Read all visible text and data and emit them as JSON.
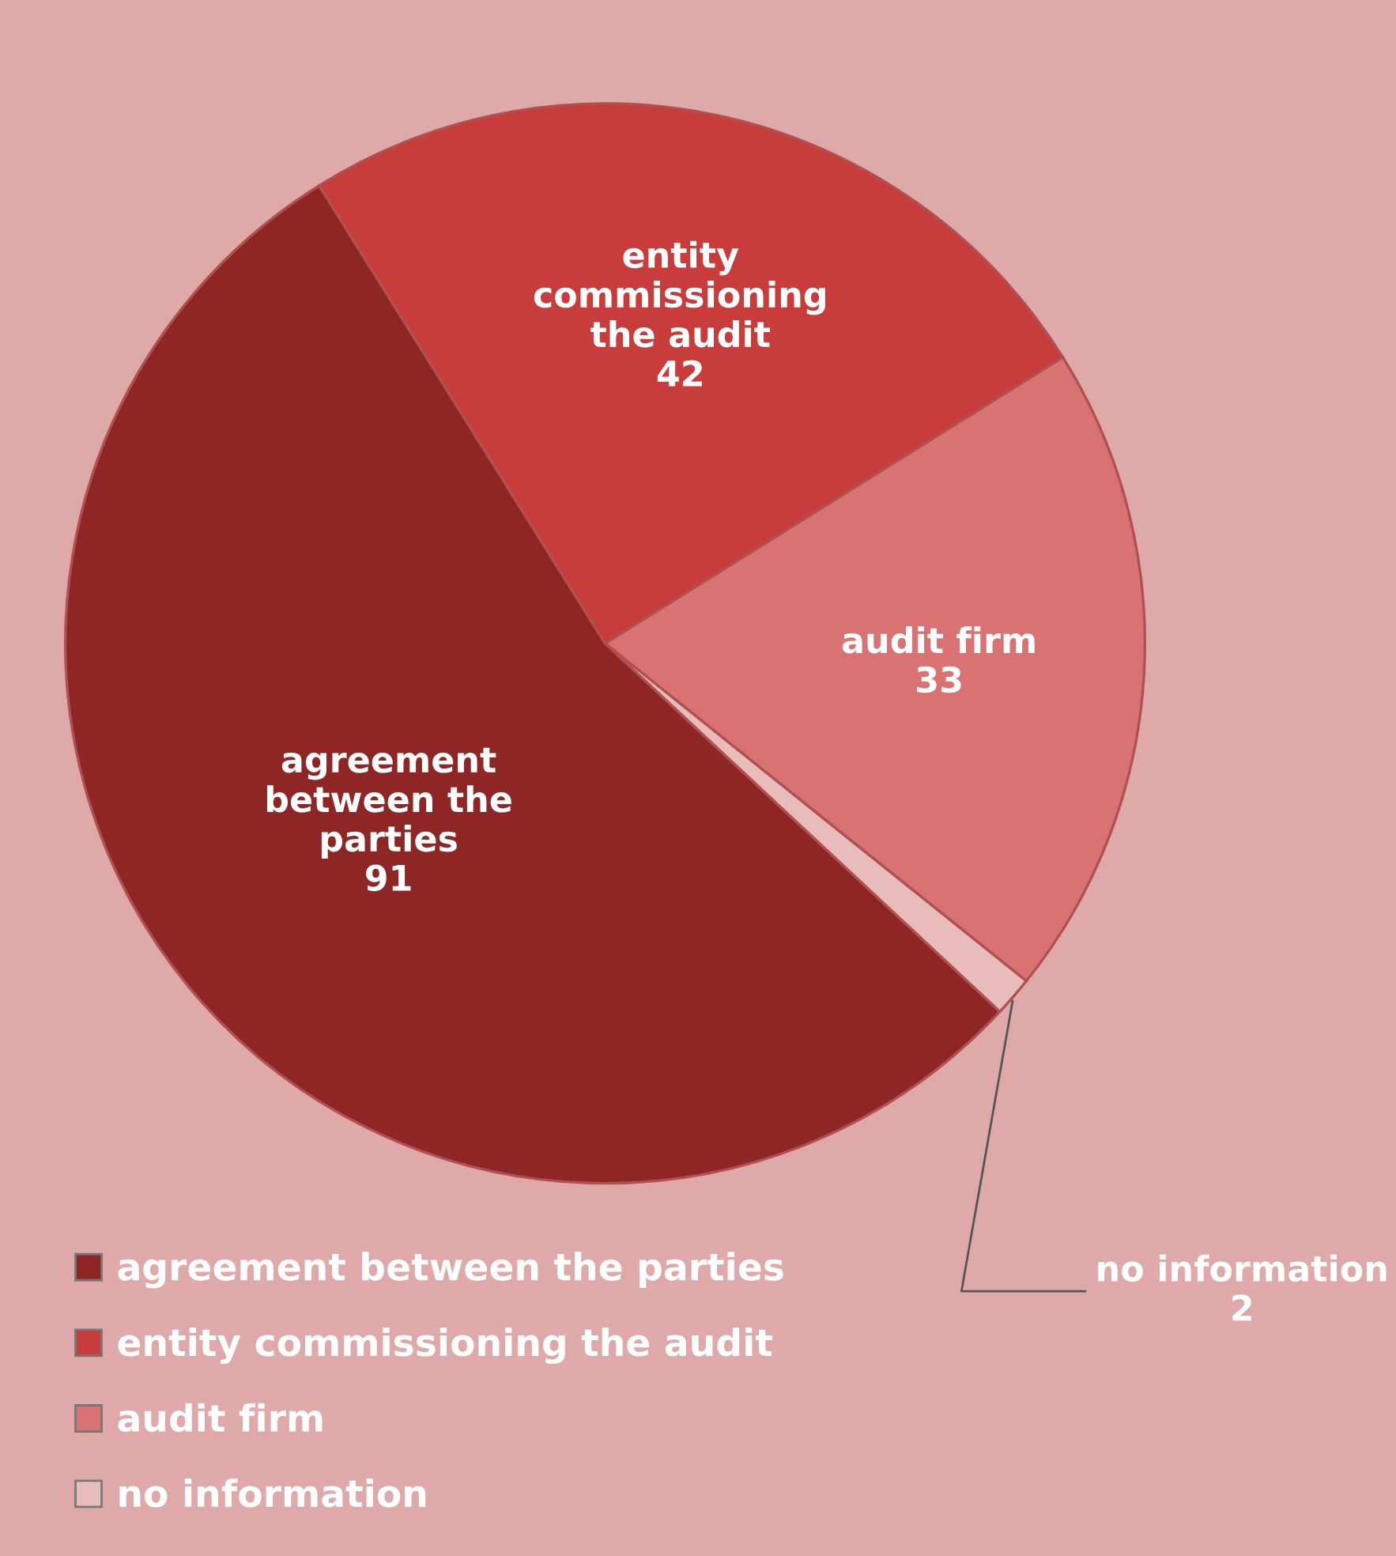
{
  "chart_data": {
    "type": "pie",
    "categories": [
      "agreement between the parties",
      "entity commissioning the audit",
      "audit firm",
      "no information"
    ],
    "values": [
      91,
      42,
      33,
      2
    ],
    "colors": [
      "#8f2626",
      "#c93c3c",
      "#d97373",
      "#e9bcbc"
    ],
    "data_labels": true,
    "legend": "bottom left"
  }
}
